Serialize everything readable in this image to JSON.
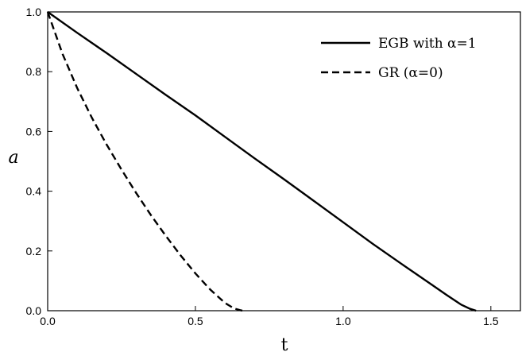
{
  "chart_data": {
    "type": "line",
    "xlabel": "t",
    "ylabel": "a",
    "xlim": [
      0.0,
      1.6
    ],
    "ylim": [
      0.0,
      1.0
    ],
    "xticks": [
      "0.0",
      "0.5",
      "1.0",
      "1.5"
    ],
    "yticks": [
      "0.0",
      "0.2",
      "0.4",
      "0.6",
      "0.8",
      "1.0"
    ],
    "grid": false,
    "legend_position": "top-right",
    "series": [
      {
        "name": "EGB with α=1",
        "style": "solid",
        "color": "#000000",
        "x": [
          0.0,
          0.1,
          0.2,
          0.3,
          0.4,
          0.5,
          0.6,
          0.7,
          0.8,
          0.9,
          1.0,
          1.1,
          1.2,
          1.3,
          1.35,
          1.4,
          1.43,
          1.45
        ],
        "y": [
          1.0,
          0.93,
          0.862,
          0.792,
          0.722,
          0.654,
          0.582,
          0.51,
          0.44,
          0.368,
          0.296,
          0.224,
          0.155,
          0.087,
          0.053,
          0.02,
          0.006,
          0.0
        ]
      },
      {
        "name": "GR (α=0)",
        "style": "dashed",
        "color": "#000000",
        "x": [
          0.0,
          0.05,
          0.1,
          0.15,
          0.2,
          0.25,
          0.3,
          0.35,
          0.4,
          0.45,
          0.5,
          0.55,
          0.6,
          0.63,
          0.65,
          0.66
        ],
        "y": [
          1.0,
          0.86,
          0.745,
          0.645,
          0.555,
          0.472,
          0.393,
          0.319,
          0.25,
          0.185,
          0.125,
          0.071,
          0.026,
          0.008,
          0.002,
          0.0
        ]
      }
    ]
  }
}
